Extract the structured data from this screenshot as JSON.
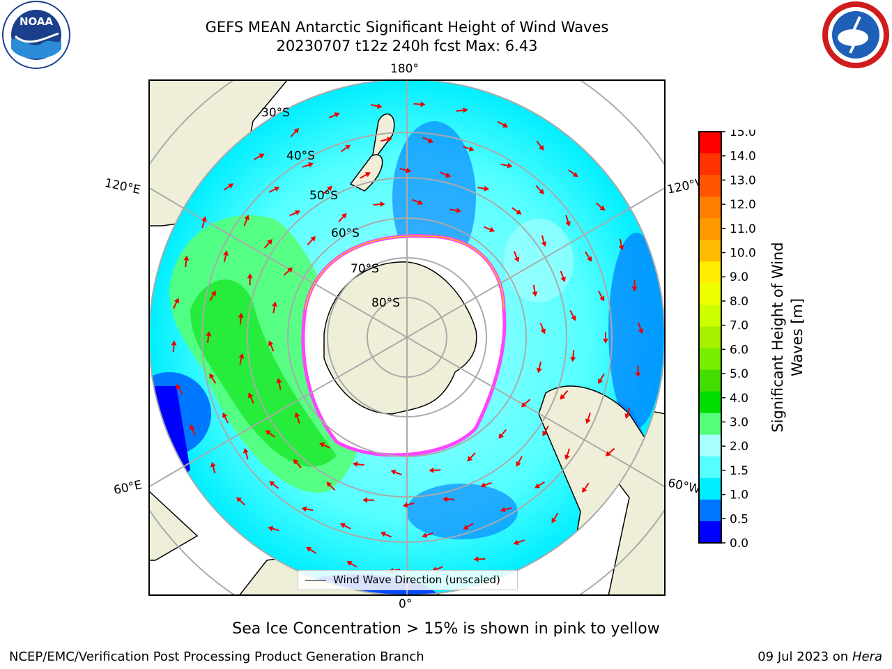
{
  "header": {
    "title": "GEFS MEAN Antarctic Significant Height of Wind Waves",
    "subtitle": "20230707 t12z 240h fcst   Max: 6.43"
  },
  "logos": {
    "left": "NOAA",
    "right": "NATIONAL WEATHER SERVICE"
  },
  "map": {
    "projection": "south-polar-stereographic",
    "longitude_labels": {
      "top": "180°",
      "bottom": "0°",
      "upper_left": "120°E",
      "lower_left": "60°E",
      "upper_right": "120°W",
      "lower_right": "60°W"
    },
    "latitude_labels": [
      "30°S",
      "40°S",
      "50°S",
      "60°S",
      "70°S",
      "80°S"
    ],
    "legend_label": "Wind Wave Direction (unscaled)",
    "colors": {
      "land": "#efefd9",
      "sea_ice": "#ffffff",
      "ice_edge": "#ff44ff",
      "arrow": "#ee0000",
      "gridline": "#aaaaaa"
    }
  },
  "colorbar": {
    "title": "Significant Height of Wind Waves [m]",
    "tick_labels": [
      "15.0",
      "14.0",
      "13.0",
      "12.0",
      "11.0",
      "10.0",
      "9.0",
      "8.0",
      "7.0",
      "6.0",
      "5.0",
      "4.0",
      "3.0",
      "2.0",
      "1.5",
      "1.0",
      "0.5",
      "0.0"
    ],
    "colors_top_to_bottom": [
      "#ff0000",
      "#ff3300",
      "#ff5500",
      "#ff7f00",
      "#ff9900",
      "#ffbb00",
      "#ffee00",
      "#f0ff00",
      "#ccff00",
      "#a6f000",
      "#77ee00",
      "#44dd00",
      "#00dd00",
      "#55ff77",
      "#aaffff",
      "#55ffff",
      "#00eeff",
      "#0077ff",
      "#0000ff"
    ],
    "bands": [
      {
        "from": "0.0",
        "to": "0.5",
        "color": "#0000ff"
      },
      {
        "from": "0.5",
        "to": "1.0",
        "color": "#0077ff"
      },
      {
        "from": "1.0",
        "to": "1.5",
        "color": "#00eeff"
      },
      {
        "from": "1.5",
        "to": "2.0",
        "color": "#55ffff"
      },
      {
        "from": "2.0",
        "to": "3.0",
        "color": "#aaffff"
      },
      {
        "from": "3.0",
        "to": "4.0",
        "color": "#55ff77"
      },
      {
        "from": "4.0",
        "to": "5.0",
        "color": "#00dd00"
      },
      {
        "from": "5.0",
        "to": "6.0",
        "color": "#44dd00"
      },
      {
        "from": "6.0",
        "to": "7.0",
        "color": "#77ee00"
      },
      {
        "from": "7.0",
        "to": "8.0",
        "color": "#ccff00"
      },
      {
        "from": "8.0",
        "to": "9.0",
        "color": "#f0ff00"
      },
      {
        "from": "9.0",
        "to": "10.0",
        "color": "#ffee00"
      },
      {
        "from": "10.0",
        "to": "11.0",
        "color": "#ffbb00"
      },
      {
        "from": "11.0",
        "to": "12.0",
        "color": "#ff9900"
      },
      {
        "from": "12.0",
        "to": "13.0",
        "color": "#ff7f00"
      },
      {
        "from": "13.0",
        "to": "14.0",
        "color": "#ff5500"
      },
      {
        "from": "14.0",
        "to": "15.0",
        "color": "#ff0000"
      }
    ]
  },
  "notes": {
    "sea_ice": "Sea Ice Concentration > 15% is shown in pink to yellow"
  },
  "footer": {
    "left": "NCEP/EMC/Verification Post Processing Product Generation Branch",
    "right_date": "09 Jul 2023 on ",
    "right_system": "Hera"
  }
}
